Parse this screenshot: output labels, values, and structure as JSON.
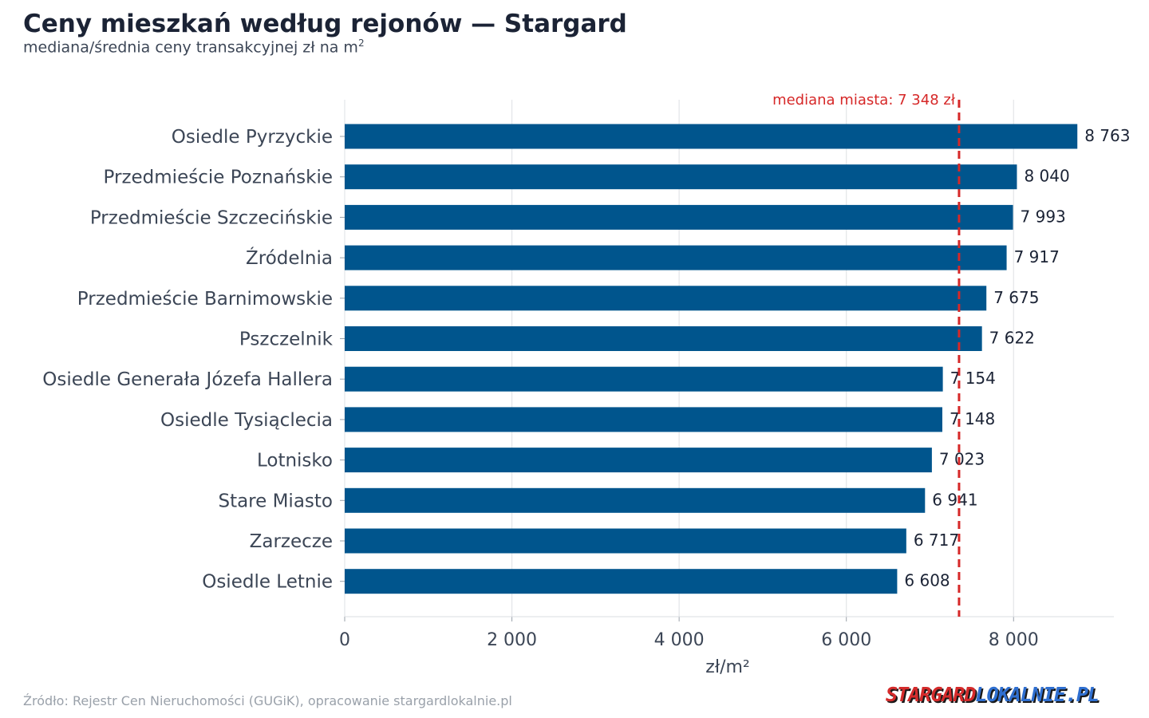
{
  "header": {
    "title": "Ceny mieszkań według rejonów — Stargard",
    "subtitle_text": "mediana/średnia ceny transakcyjnej zł na m",
    "subtitle_sup": "2"
  },
  "footer": {
    "source": "Źródło: Rejestr Cen Nieruchomości (GUGiK), opracowanie stargardlokalnie.pl",
    "logo_part1": "STARGARD",
    "logo_part2": "LOKALNIE.PL"
  },
  "chart_data": {
    "type": "bar",
    "orientation": "horizontal",
    "categories": [
      "Osiedle Pyrzyckie",
      "Przedmieście Poznańskie",
      "Przedmieście Szczecińskie",
      "Źródelnia",
      "Przedmieście Barnimowskie",
      "Pszczelnik",
      "Osiedle Generała Józefa Hallera",
      "Osiedle Tysiąclecia",
      "Lotnisko",
      "Stare Miasto",
      "Zarzecze",
      "Osiedle Letnie"
    ],
    "values": [
      8763,
      8040,
      7993,
      7917,
      7675,
      7622,
      7154,
      7148,
      7023,
      6941,
      6717,
      6608
    ],
    "value_labels": [
      "8 763",
      "8 040",
      "7 993",
      "7 917",
      "7 675",
      "7 622",
      "7 154",
      "7 148",
      "7 023",
      "6 941",
      "6 717",
      "6 608"
    ],
    "xlabel": "zł/m²",
    "xlim": [
      0,
      9200
    ],
    "xticks": [
      0,
      2000,
      4000,
      6000,
      8000
    ],
    "xtick_labels": [
      "0",
      "2 000",
      "4 000",
      "6 000",
      "8 000"
    ],
    "grid": true,
    "reference_line": {
      "value": 7348,
      "label": "mediana miasta: 7 348 zł"
    },
    "colors": {
      "bar": "#00558d",
      "reference": "#d62828",
      "grid": "#e3e5e8",
      "text": "#3c4656"
    }
  }
}
